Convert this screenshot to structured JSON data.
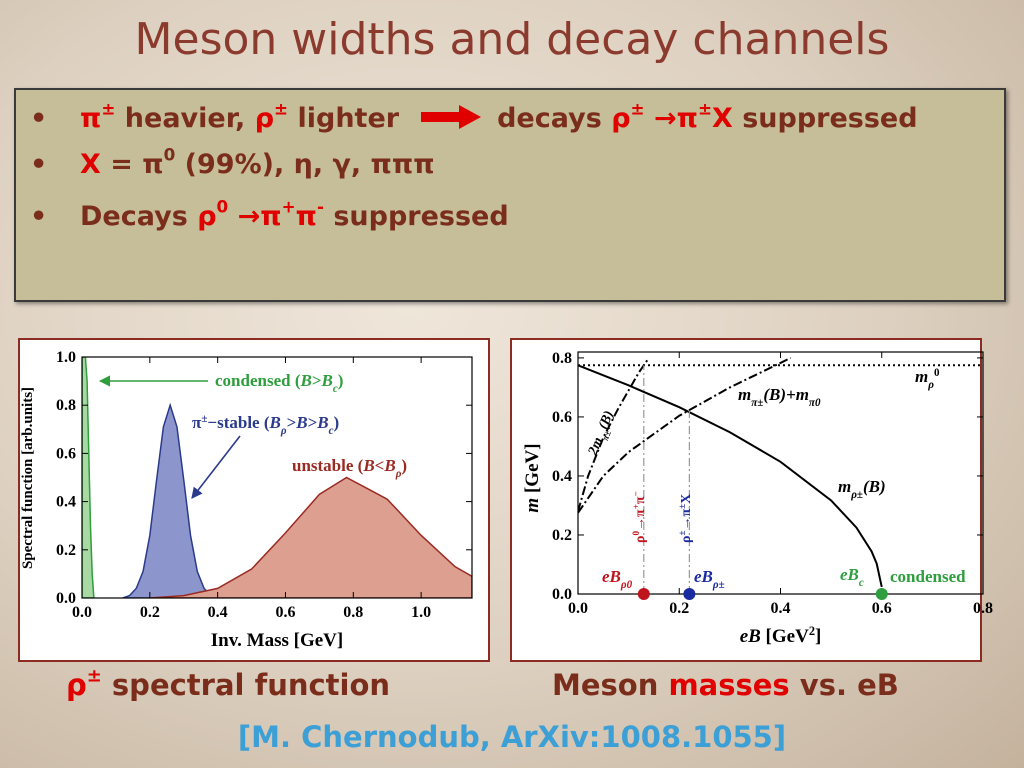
{
  "slide": {
    "title": "Meson widths and decay channels",
    "bullets": [
      [
        {
          "text": "π",
          "color": "#e00000"
        },
        {
          "text": "±",
          "sup": true,
          "color": "#e00000"
        },
        {
          "text": " heavier, "
        },
        {
          "text": "ρ",
          "color": "#e00000"
        },
        {
          "text": "±",
          "sup": true,
          "color": "#e00000"
        },
        {
          "text": " lighter"
        },
        {
          "text": "decays  "
        },
        {
          "text": "ρ",
          "color": "#e00000"
        },
        {
          "text": "±",
          "sup": true,
          "color": "#e00000"
        },
        {
          "text": " →π",
          "color": "#e00000"
        },
        {
          "text": "±",
          "sup": true,
          "color": "#e00000"
        },
        {
          "text": "X",
          "color": "#e00000"
        },
        {
          "text": " suppressed"
        }
      ],
      [
        {
          "text": "X",
          "color": "#e00000"
        },
        {
          "text": " = π"
        },
        {
          "text": "0",
          "sup": true
        },
        {
          "text": " (99%), η, γ, πππ"
        }
      ],
      [
        {
          "text": "Decays "
        },
        {
          "text": "ρ",
          "color": "#e00000"
        },
        {
          "text": "0",
          "sup": true,
          "color": "#e00000"
        },
        {
          "text": " →π",
          "color": "#e00000"
        },
        {
          "text": "+",
          "sup": true,
          "color": "#e00000"
        },
        {
          "text": "π",
          "color": "#e00000"
        },
        {
          "text": "-",
          "sup": true,
          "color": "#e00000"
        },
        {
          "text": " suppressed"
        }
      ]
    ],
    "captions": [
      [
        {
          "text": "ρ",
          "color": "#e00000"
        },
        {
          "text": "±",
          "sup": true,
          "color": "#e00000"
        },
        {
          "text": " spectral function"
        }
      ],
      [
        {
          "text": "Meson "
        },
        {
          "text": "masses",
          "color": "#e00000"
        },
        {
          "text": " vs. eB"
        }
      ]
    ],
    "citation": "[M. Chernodub, ArXiv:1008.1055]"
  },
  "chart_data": [
    {
      "type": "area",
      "xlabel": [
        {
          "text": "Inv. Mass [GeV]"
        }
      ],
      "ylabel": [
        {
          "text": "Spectral function [arb.units]"
        }
      ],
      "xlim": [
        0,
        1.15
      ],
      "ylim": [
        0,
        1
      ],
      "xticks": [
        {
          "value": 0,
          "label": "0.0"
        },
        0.2,
        0.4,
        0.6,
        0.8,
        {
          "value": 1,
          "label": "1.0"
        }
      ],
      "yticks": [
        {
          "value": 0,
          "label": "0.0"
        },
        0.2,
        0.4,
        0.6,
        0.8,
        {
          "value": 1,
          "label": "1.0"
        }
      ],
      "series": [
        {
          "color": "#2e9e3e",
          "fill": "#a9d9a2",
          "x": [
            0,
            0.01,
            0.015,
            0.02,
            0.025,
            0.03,
            0.035
          ],
          "values": [
            1,
            1,
            0.9,
            0.6,
            0.3,
            0.1,
            0
          ]
        },
        {
          "color": "#2a3a8c",
          "fill": "#8d96cc",
          "x": [
            0.12,
            0.14,
            0.16,
            0.18,
            0.2,
            0.22,
            0.24,
            0.26,
            0.28,
            0.3,
            0.32,
            0.34,
            0.36,
            0.38,
            0.4
          ],
          "values": [
            0,
            0.01,
            0.04,
            0.11,
            0.26,
            0.49,
            0.71,
            0.8,
            0.71,
            0.49,
            0.26,
            0.11,
            0.04,
            0.01,
            0
          ]
        },
        {
          "color": "#9a2a22",
          "fill": "#dc9f90",
          "x": [
            0.2,
            0.3,
            0.4,
            0.5,
            0.6,
            0.7,
            0.78,
            0.9,
            1.0,
            1.1,
            1.15
          ],
          "values": [
            0,
            0.01,
            0.04,
            0.12,
            0.27,
            0.43,
            0.5,
            0.41,
            0.26,
            0.13,
            0.09
          ]
        }
      ],
      "annotations": [
        {
          "color": "#2e9e3e",
          "parts": [
            {
              "text": "condensed ("
            },
            {
              "text": "B",
              "italic": true
            },
            {
              "text": ">"
            },
            {
              "text": "B",
              "italic": true
            },
            {
              "text": "c",
              "sub": true,
              "italic": true
            },
            {
              "text": ")"
            }
          ]
        },
        {
          "color": "#2a3a8c",
          "parts": [
            {
              "text": "π"
            },
            {
              "text": "±",
              "sup": true
            },
            {
              "text": "−stable ("
            },
            {
              "text": "B",
              "italic": true
            },
            {
              "text": "ρ",
              "sub": true,
              "italic": true
            },
            {
              "text": ">"
            },
            {
              "text": "B",
              "italic": true
            },
            {
              "text": ">"
            },
            {
              "text": "B",
              "italic": true
            },
            {
              "text": "c",
              "sub": true,
              "italic": true
            },
            {
              "text": ")"
            }
          ]
        },
        {
          "color": "#9a2a22",
          "parts": [
            {
              "text": "unstable ("
            },
            {
              "text": "B",
              "italic": true
            },
            {
              "text": "<"
            },
            {
              "text": "B",
              "italic": true
            },
            {
              "text": "ρ",
              "sub": true,
              "italic": true
            },
            {
              "text": ")"
            }
          ]
        }
      ]
    },
    {
      "type": "line",
      "xlabel": [
        {
          "text": "eB",
          "italic": true
        },
        {
          "text": " [GeV"
        },
        {
          "text": "2",
          "sup": true
        },
        {
          "text": "]"
        }
      ],
      "ylabel": [
        {
          "text": "m",
          "italic": true
        },
        {
          "text": " [GeV]"
        }
      ],
      "xlim": [
        0,
        0.8
      ],
      "ylim": [
        0,
        0.82
      ],
      "xticks": [
        {
          "value": 0,
          "label": "0.0"
        },
        0.2,
        0.4,
        0.6,
        0.8
      ],
      "yticks": [
        {
          "value": 0,
          "label": "0.0"
        },
        0.2,
        0.4,
        0.6,
        0.8
      ],
      "series": [
        {
          "color": "#000000",
          "dash": "dot",
          "x": [
            0,
            0.8
          ],
          "values": [
            0.775,
            0.775
          ]
        },
        {
          "color": "#000000",
          "dash": "solid",
          "x": [
            0,
            0.1,
            0.2,
            0.3,
            0.4,
            0.5,
            0.55,
            0.58,
            0.59,
            0.6
          ],
          "values": [
            0.775,
            0.707,
            0.633,
            0.548,
            0.448,
            0.317,
            0.225,
            0.144,
            0.103,
            0.024
          ]
        },
        {
          "color": "#000000",
          "dash": "dashdot",
          "x": [
            0,
            0.02,
            0.05,
            0.08,
            0.1,
            0.12,
            0.14
          ],
          "values": [
            0.28,
            0.4,
            0.53,
            0.63,
            0.69,
            0.75,
            0.8
          ]
        },
        {
          "color": "#000000",
          "dash": "dashdot",
          "x": [
            0,
            0.05,
            0.1,
            0.2,
            0.3,
            0.4,
            0.42
          ],
          "values": [
            0.275,
            0.4,
            0.481,
            0.604,
            0.7,
            0.783,
            0.8
          ]
        }
      ],
      "vlines": {
        "color": "#999999",
        "x": [
          0.13,
          0.22
        ],
        "values": [
          0.775,
          0.62
        ]
      },
      "points": {
        "x": [
          0.13,
          0.22,
          0.6
        ],
        "values": [
          0,
          0,
          0
        ],
        "colors": [
          "#c0141c",
          "#1a2aa0",
          "#2e9e3e"
        ]
      },
      "annotations": [
        {
          "color": "#000000",
          "parts": [
            {
              "text": "m",
              "italic": true
            },
            {
              "text": "ρ",
              "sub": true,
              "italic": true
            },
            {
              "text": "0",
              "sup": true
            }
          ]
        },
        {
          "color": "#000000",
          "parts": [
            {
              "text": "m",
              "italic": true
            },
            {
              "text": "π±",
              "sub": true,
              "italic": true
            },
            {
              "text": "(B)+",
              "italic": true
            },
            {
              "text": "m",
              "italic": true
            },
            {
              "text": "π0",
              "sub": true,
              "italic": true
            }
          ]
        },
        {
          "color": "#000000",
          "parts": [
            {
              "text": "m",
              "italic": true
            },
            {
              "text": "ρ±",
              "sub": true,
              "italic": true
            },
            {
              "text": "(B)",
              "italic": true
            }
          ]
        },
        {
          "color": "#000000",
          "parts": [
            {
              "text": "2m",
              "italic": true
            },
            {
              "text": "π±",
              "sub": true,
              "italic": true
            },
            {
              "text": "(B)",
              "italic": true
            }
          ]
        },
        {
          "color": "#c0141c",
          "parts": [
            {
              "text": "ρ"
            },
            {
              "text": "0",
              "sup": true
            },
            {
              "text": "→π"
            },
            {
              "text": "+",
              "sup": true
            },
            {
              "text": "π"
            },
            {
              "text": "−",
              "sup": true
            }
          ]
        },
        {
          "color": "#1a2aa0",
          "parts": [
            {
              "text": "ρ"
            },
            {
              "text": "±",
              "sup": true
            },
            {
              "text": "→π"
            },
            {
              "text": "±",
              "sup": true
            },
            {
              "text": "X"
            }
          ]
        },
        {
          "color": "#c0141c",
          "parts": [
            {
              "text": "eB",
              "italic": true
            },
            {
              "text": "ρ0",
              "sub": true,
              "italic": true
            }
          ]
        },
        {
          "color": "#1a2aa0",
          "parts": [
            {
              "text": "eB",
              "italic": true
            },
            {
              "text": "ρ±",
              "sub": true,
              "italic": true
            }
          ]
        },
        {
          "color": "#2e9e3e",
          "parts": [
            {
              "text": "eB",
              "italic": true
            },
            {
              "text": "c",
              "sub": true,
              "italic": true
            }
          ]
        },
        {
          "color": "#2e9e3e",
          "parts": [
            {
              "text": "condensed"
            }
          ]
        }
      ]
    }
  ]
}
